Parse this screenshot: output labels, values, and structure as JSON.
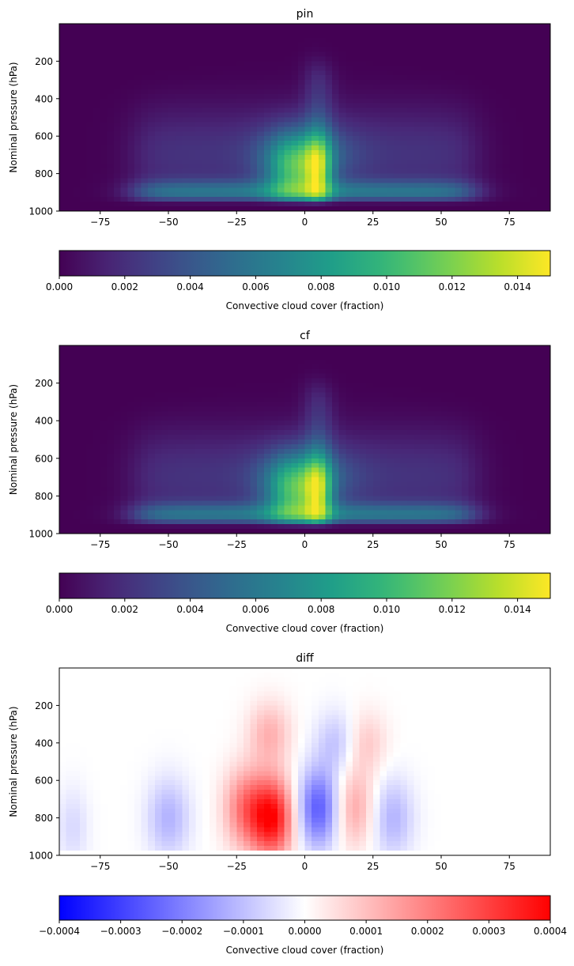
{
  "chart_data": [
    {
      "type": "heatmap",
      "title": "pin",
      "xlabel": "",
      "ylabel": "Nominal pressure (hPa)",
      "xlim": [
        -90,
        90
      ],
      "ylim": [
        1000,
        0
      ],
      "xticks": [
        -75,
        -50,
        -25,
        0,
        25,
        50,
        75
      ],
      "xtick_labels": [
        "−75",
        "−50",
        "−25",
        "0",
        "25",
        "50",
        "75"
      ],
      "yticks": [
        200,
        400,
        600,
        800,
        1000
      ],
      "ytick_labels": [
        "200",
        "400",
        "600",
        "800",
        "1000"
      ],
      "colormap": "viridis",
      "vmin": 0.0,
      "vmax": 0.015,
      "colorbar_label": "Convective cloud cover (fraction)",
      "colorbar_ticks": [
        0,
        0.002,
        0.004,
        0.006,
        0.008,
        0.01,
        0.012,
        0.014
      ],
      "colorbar_tick_labels": [
        "0.000",
        "0.002",
        "0.004",
        "0.006",
        "0.008",
        "0.010",
        "0.012",
        "0.014"
      ],
      "grid": false,
      "features": {
        "max_value": 0.015,
        "max_location": {
          "lat": 5,
          "pressure": 850
        },
        "secondary_max": {
          "lat": -4,
          "pressure": 870,
          "value": 0.0125
        },
        "vertical_extent_top_hPa": 170,
        "boundary_layer_band": {
          "pressure": 920,
          "lat_range": [
            -60,
            65
          ],
          "value": 0.005
        }
      }
    },
    {
      "type": "heatmap",
      "title": "cf",
      "xlabel": "",
      "ylabel": "Nominal pressure (hPa)",
      "xlim": [
        -90,
        90
      ],
      "ylim": [
        1000,
        0
      ],
      "xticks": [
        -75,
        -50,
        -25,
        0,
        25,
        50,
        75
      ],
      "xtick_labels": [
        "−75",
        "−50",
        "−25",
        "0",
        "25",
        "50",
        "75"
      ],
      "yticks": [
        200,
        400,
        600,
        800,
        1000
      ],
      "ytick_labels": [
        "200",
        "400",
        "600",
        "800",
        "1000"
      ],
      "colormap": "viridis",
      "vmin": 0.0,
      "vmax": 0.015,
      "colorbar_label": "Convective cloud cover (fraction)",
      "colorbar_ticks": [
        0,
        0.002,
        0.004,
        0.006,
        0.008,
        0.01,
        0.012,
        0.014
      ],
      "colorbar_tick_labels": [
        "0.000",
        "0.002",
        "0.004",
        "0.006",
        "0.008",
        "0.010",
        "0.012",
        "0.014"
      ],
      "grid": false,
      "features": {
        "max_value": 0.0148,
        "max_location": {
          "lat": 5,
          "pressure": 850
        },
        "secondary_max": {
          "lat": -4,
          "pressure": 870,
          "value": 0.012
        },
        "vertical_extent_top_hPa": 170,
        "boundary_layer_band": {
          "pressure": 920,
          "lat_range": [
            -60,
            65
          ],
          "value": 0.005
        }
      }
    },
    {
      "type": "heatmap",
      "title": "diff",
      "xlabel": "",
      "ylabel": "Nominal pressure (hPa)",
      "xlim": [
        -90,
        90
      ],
      "ylim": [
        1000,
        0
      ],
      "xticks": [
        -75,
        -50,
        -25,
        0,
        25,
        50,
        75
      ],
      "xtick_labels": [
        "−75",
        "−50",
        "−25",
        "0",
        "25",
        "50",
        "75"
      ],
      "yticks": [
        200,
        400,
        600,
        800,
        1000
      ],
      "ytick_labels": [
        "200",
        "400",
        "600",
        "800",
        "1000"
      ],
      "colormap": "bwr",
      "vmin": -0.0004,
      "vmax": 0.0004,
      "colorbar_label": "Convective cloud cover (fraction)",
      "colorbar_ticks": [
        -0.0004,
        -0.0003,
        -0.0002,
        -0.0001,
        0,
        0.0001,
        0.0002,
        0.0003,
        0.0004
      ],
      "colorbar_tick_labels": [
        "−0.0004",
        "−0.0003",
        "−0.0002",
        "−0.0001",
        "0.0000",
        "0.0001",
        "0.0002",
        "0.0003",
        "0.0004"
      ],
      "grid": false,
      "features": [
        {
          "lat": -12,
          "pressure": 800,
          "value": 0.00038
        },
        {
          "lat": -22,
          "pressure": 750,
          "value": 0.0002
        },
        {
          "lat": 5,
          "pressure": 750,
          "value": -0.00026
        },
        {
          "lat": -50,
          "pressure": 800,
          "value": -0.00012
        },
        {
          "lat": 32,
          "pressure": 800,
          "value": -0.00012
        },
        {
          "lat": 18,
          "pressure": 750,
          "value": 0.00014
        },
        {
          "lat": 22,
          "pressure": 400,
          "value": 9e-05
        },
        {
          "lat": -13,
          "pressure": 350,
          "value": 0.00012
        },
        {
          "lat": 12,
          "pressure": 400,
          "value": -0.0001
        },
        {
          "lat": -85,
          "pressure": 850,
          "value": -6e-05
        }
      ]
    }
  ]
}
